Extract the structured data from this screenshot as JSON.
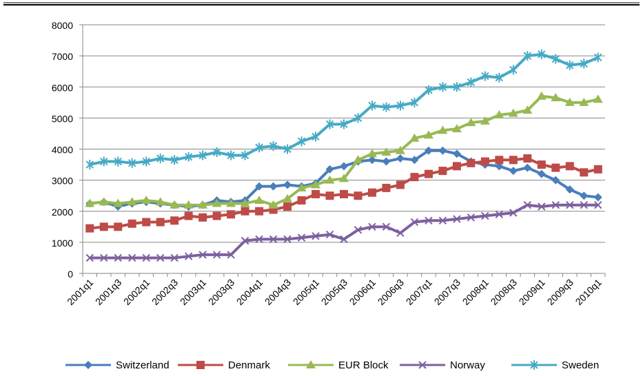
{
  "chart_data": {
    "type": "line",
    "categories": [
      "2001q1",
      null,
      "2001q3",
      null,
      "2002q1",
      null,
      "2002q3",
      null,
      "2003q1",
      null,
      "2003q3",
      null,
      "2004q1",
      null,
      "2004q3",
      null,
      "2005q1",
      null,
      "2005q3",
      null,
      "2006q1",
      null,
      "2006q3",
      null,
      "2007q1",
      null,
      "2007q3",
      null,
      "2008q1",
      null,
      "2008q3",
      null,
      "2009q1",
      null,
      "2009q3",
      null,
      "2010q1"
    ],
    "series": [
      {
        "name": "Switzerland",
        "color": "#4a7ebb",
        "marker": "diamond",
        "values": [
          2250,
          2300,
          2150,
          2250,
          2300,
          2250,
          2200,
          2150,
          2200,
          2350,
          2300,
          2350,
          2800,
          2800,
          2850,
          2800,
          2900,
          3350,
          3450,
          3600,
          3650,
          3600,
          3700,
          3650,
          3950,
          3950,
          3850,
          3600,
          3500,
          3450,
          3300,
          3400,
          3200,
          3000,
          2700,
          2500,
          2450
        ]
      },
      {
        "name": "Denmark",
        "color": "#be4b48",
        "marker": "square",
        "values": [
          1450,
          1500,
          1500,
          1600,
          1650,
          1650,
          1700,
          1850,
          1800,
          1850,
          1900,
          2000,
          2000,
          2050,
          2150,
          2350,
          2550,
          2500,
          2550,
          2500,
          2600,
          2750,
          2850,
          3100,
          3200,
          3300,
          3450,
          3550,
          3600,
          3650,
          3650,
          3700,
          3500,
          3400,
          3450,
          3250,
          3350
        ]
      },
      {
        "name": "EUR Block",
        "color": "#98b954",
        "marker": "triangle",
        "values": [
          2250,
          2300,
          2250,
          2300,
          2350,
          2300,
          2200,
          2200,
          2200,
          2250,
          2250,
          2250,
          2350,
          2200,
          2400,
          2750,
          2850,
          3000,
          3050,
          3650,
          3850,
          3900,
          3950,
          4350,
          4450,
          4600,
          4650,
          4850,
          4900,
          5100,
          5150,
          5250,
          5700,
          5650,
          5500,
          5500,
          5600
        ]
      },
      {
        "name": "Norway",
        "color": "#7d60a0",
        "marker": "x",
        "values": [
          500,
          500,
          500,
          500,
          500,
          500,
          500,
          550,
          600,
          600,
          600,
          1050,
          1100,
          1100,
          1100,
          1150,
          1200,
          1250,
          1100,
          1400,
          1500,
          1500,
          1300,
          1650,
          1700,
          1700,
          1750,
          1800,
          1850,
          1900,
          1950,
          2200,
          2150,
          2200,
          2200,
          2200,
          2200
        ]
      },
      {
        "name": "Sweden",
        "color": "#46aac5",
        "marker": "star",
        "values": [
          3500,
          3600,
          3600,
          3550,
          3600,
          3700,
          3650,
          3750,
          3800,
          3900,
          3800,
          3800,
          4050,
          4100,
          4000,
          4250,
          4400,
          4800,
          4800,
          5000,
          5400,
          5350,
          5400,
          5500,
          5900,
          6000,
          6000,
          6150,
          6350,
          6300,
          6550,
          7000,
          7050,
          6900,
          6700,
          6750,
          6950
        ]
      }
    ],
    "ylim": [
      0,
      8000
    ],
    "yticks": [
      0,
      1000,
      2000,
      3000,
      4000,
      5000,
      6000,
      7000,
      8000
    ],
    "grid": true,
    "legend": "bottom"
  }
}
